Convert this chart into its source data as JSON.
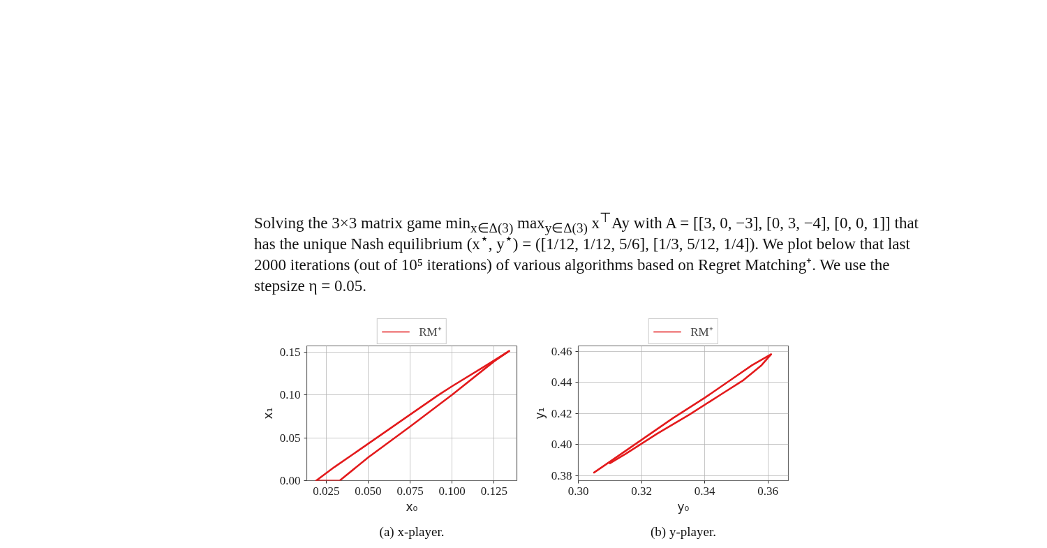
{
  "chart_data": [
    {
      "type": "line",
      "xlabel": "x₀",
      "ylabel": "x₁",
      "annotations": [
        "Solving the 3×3 matrix game min$_{x∈Δ(3)}$ max$_{y∈Δ(3)}$ x$^{⊤}$Ay with A = [[3, 0, −3], [0, 3, −4], [0, 0, 1]] that has the unique Nash equilibrium (x$^{⋆}$, y$^{⋆}$) = ([1/12, 1/12, 5/6], [1/3, 5/12, 1/4]). We plot below that last 2000 iterations (out of 10⁵ iterations) of various algorithms based on Regret Matching⁺. We use the stepsize η = 0.05.",
        "(a) x-player."
      ],
      "xlim": [
        0.0134,
        0.1386
      ],
      "ylim": [
        0,
        0.157
      ],
      "xticks": [
        0.025,
        {
          "value": 0.05,
          "label": "0.050"
        },
        0.075,
        {
          "value": 0.1,
          "label": "0.100"
        },
        0.125
      ],
      "yticks": [
        {
          "value": 0,
          "label": "0.00"
        },
        0.05,
        {
          "value": 0.1,
          "label": "0.10"
        },
        0.15
      ],
      "grid": true,
      "legend": "top",
      "line_style": "solid",
      "series": [
        {
          "name": "RM⁺",
          "color": "#e31a1c",
          "x": [
            0.019,
            0.03,
            0.05,
            0.075,
            0.092,
            0.1,
            0.12,
            0.134
          ],
          "values": [
            0,
            0.016,
            0.043,
            0.077,
            0.1,
            0.11,
            0.134,
            0.151
          ]
        },
        {
          "color": "#e31a1c",
          "x": [
            0.019,
            0.033,
            0.05,
            0.075,
            0.1,
            0.125,
            0.134
          ],
          "values": [
            0,
            0,
            0.027,
            0.063,
            0.1,
            0.139,
            0.151
          ]
        }
      ]
    },
    {
      "type": "line",
      "xlabel": "y₀",
      "ylabel": "y₁",
      "annotations": [
        "(b) y-player."
      ],
      "xlim": [
        0.3,
        0.3665
      ],
      "ylim": [
        0.3768,
        0.4634
      ],
      "xticks": [
        {
          "value": 0.3,
          "label": "0.30"
        },
        0.32,
        0.34,
        0.36
      ],
      "yticks": [
        0.38,
        {
          "value": 0.4,
          "label": "0.40"
        },
        0.42,
        0.44,
        0.46
      ],
      "grid": true,
      "legend": "top",
      "line_style": "solid",
      "series": [
        {
          "name": "RM⁺",
          "color": "#e31a1c",
          "x": [
            0.305,
            0.31,
            0.32,
            0.33,
            0.34,
            0.35,
            0.355,
            0.361
          ],
          "values": [
            0.382,
            0.389,
            0.403,
            0.417,
            0.43,
            0.444,
            0.451,
            0.458
          ]
        },
        {
          "color": "#e31a1c",
          "x": [
            0.31,
            0.315,
            0.325,
            0.335,
            0.345,
            0.352,
            0.358,
            0.361
          ],
          "values": [
            0.388,
            0.394,
            0.407,
            0.419,
            0.432,
            0.441,
            0.451,
            0.458
          ]
        }
      ]
    }
  ]
}
